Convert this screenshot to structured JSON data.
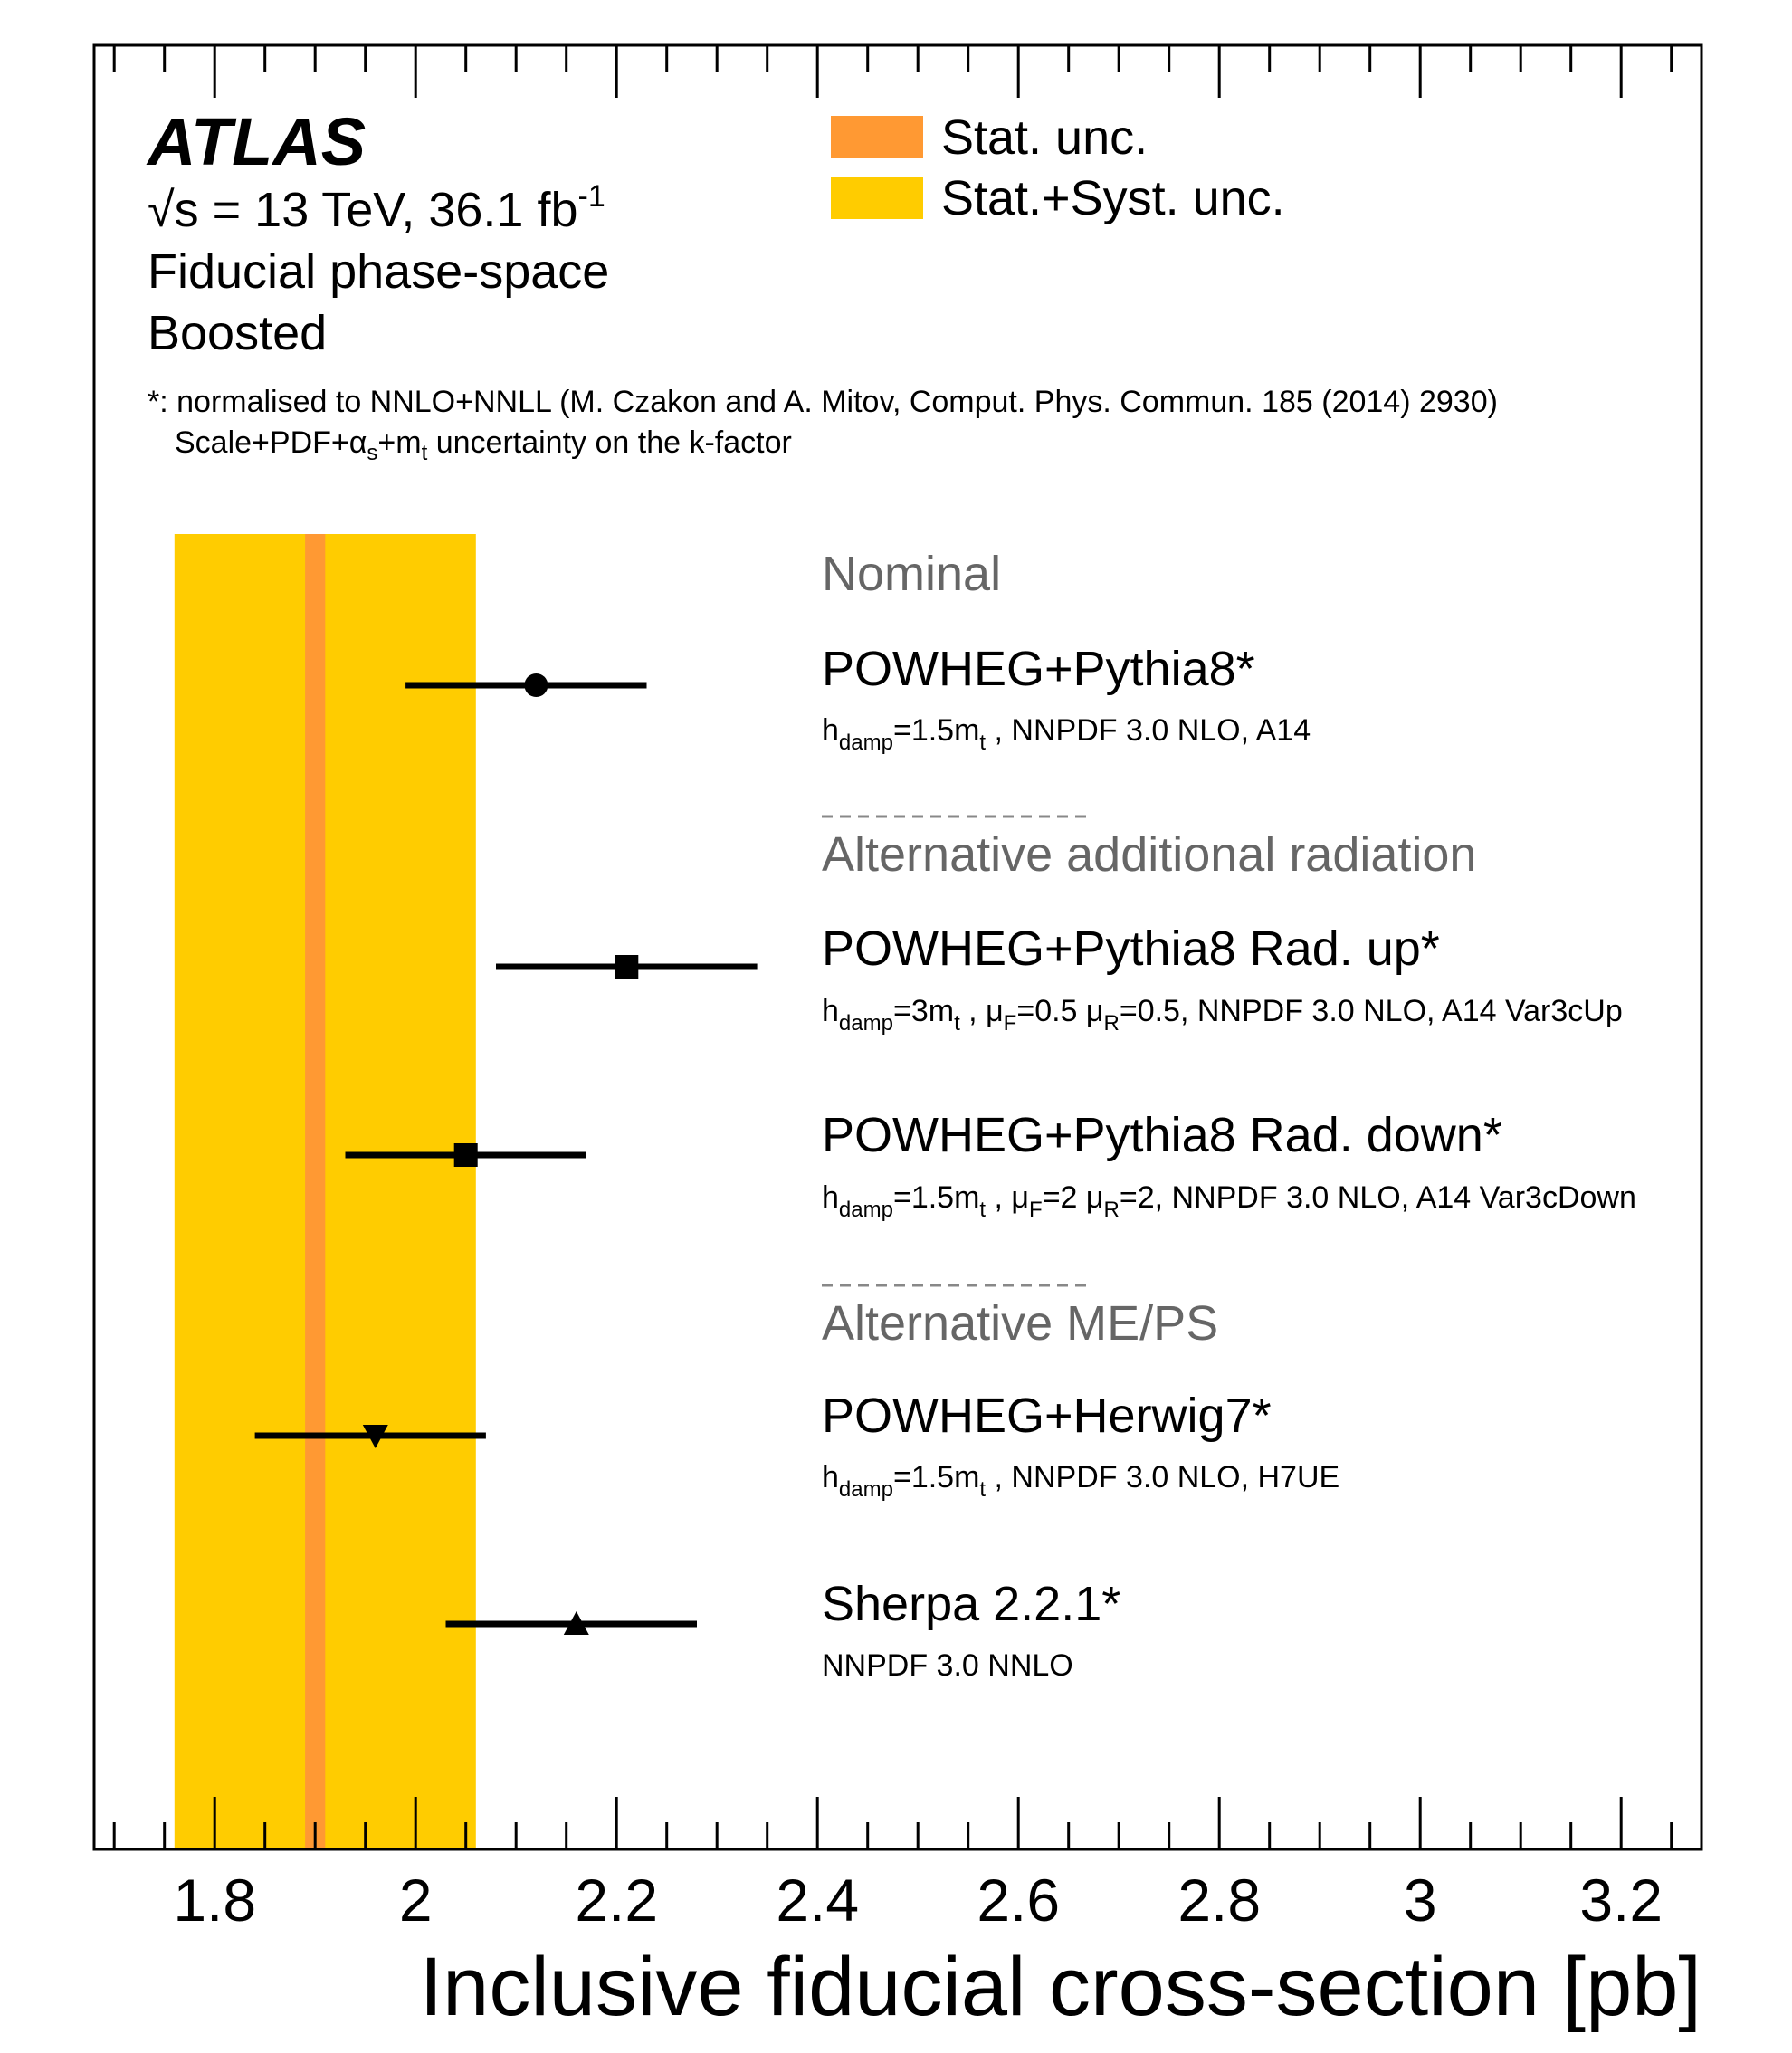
{
  "experiment": "ATLAS",
  "info": {
    "energy_prefix": "√s = 13 TeV, 36.1 fb",
    "energy_sup": "-1",
    "line2": "Fiducial phase-space",
    "line3": "Boosted"
  },
  "note": {
    "line1": "*: normalised to NNLO+NNLL (M. Czakon and A. Mitov, Comput. Phys. Commun. 185 (2014) 2930)",
    "line2": "Scale+PDF+αs+mt uncertainty on the k-factor"
  },
  "legend": [
    {
      "label": "Stat. unc.",
      "color": "#ff9933"
    },
    {
      "label": "Stat.+Syst. unc.",
      "color": "#ffcc00"
    }
  ],
  "groups": [
    "Nominal",
    "Alternative additional radiation",
    "Alternative ME/PS"
  ],
  "entries": [
    {
      "label": "POWHEG+Pythia8*",
      "detail": "hdamp=1.5mt , NNPDF 3.0 NLO, A14"
    },
    {
      "label": "POWHEG+Pythia8 Rad. up*",
      "detail": "hdamp=3mt , μF=0.5 μR=0.5, NNPDF 3.0 NLO, A14 Var3cUp"
    },
    {
      "label": "POWHEG+Pythia8 Rad. down*",
      "detail": "hdamp=1.5mt , μF=2 μR=2, NNPDF 3.0 NLO, A14 Var3cDown"
    },
    {
      "label": "POWHEG+Herwig7*",
      "detail": "hdamp=1.5mt , NNPDF 3.0 NLO, H7UE"
    },
    {
      "label": "Sherpa 2.2.1*",
      "detail": "NNPDF 3.0 NNLO"
    }
  ],
  "chart_data": {
    "type": "scatter",
    "xlabel": "Inclusive fiducial cross-section [pb]",
    "xlim": [
      1.68,
      3.28
    ],
    "xticks": [
      "1.8",
      "2",
      "2.2",
      "2.4",
      "2.6",
      "2.8",
      "3",
      "3.2"
    ],
    "measurement": {
      "central": 1.9,
      "stat_band": [
        1.89,
        1.91
      ],
      "total_band": [
        1.76,
        2.06
      ]
    },
    "series": [
      {
        "name": "POWHEG+Pythia8*",
        "marker": "circle",
        "value": 2.12,
        "err_low": 1.99,
        "err_high": 2.23
      },
      {
        "name": "POWHEG+Pythia8 Rad. up*",
        "marker": "square",
        "value": 2.21,
        "err_low": 2.08,
        "err_high": 2.34
      },
      {
        "name": "POWHEG+Pythia8 Rad. down*",
        "marker": "square",
        "value": 2.05,
        "err_low": 1.93,
        "err_high": 2.17
      },
      {
        "name": "POWHEG+Herwig7*",
        "marker": "triangle-down",
        "value": 1.96,
        "err_low": 1.84,
        "err_high": 2.07
      },
      {
        "name": "Sherpa 2.2.1*",
        "marker": "triangle-up",
        "value": 2.16,
        "err_low": 2.03,
        "err_high": 2.28
      }
    ],
    "grid": false
  }
}
